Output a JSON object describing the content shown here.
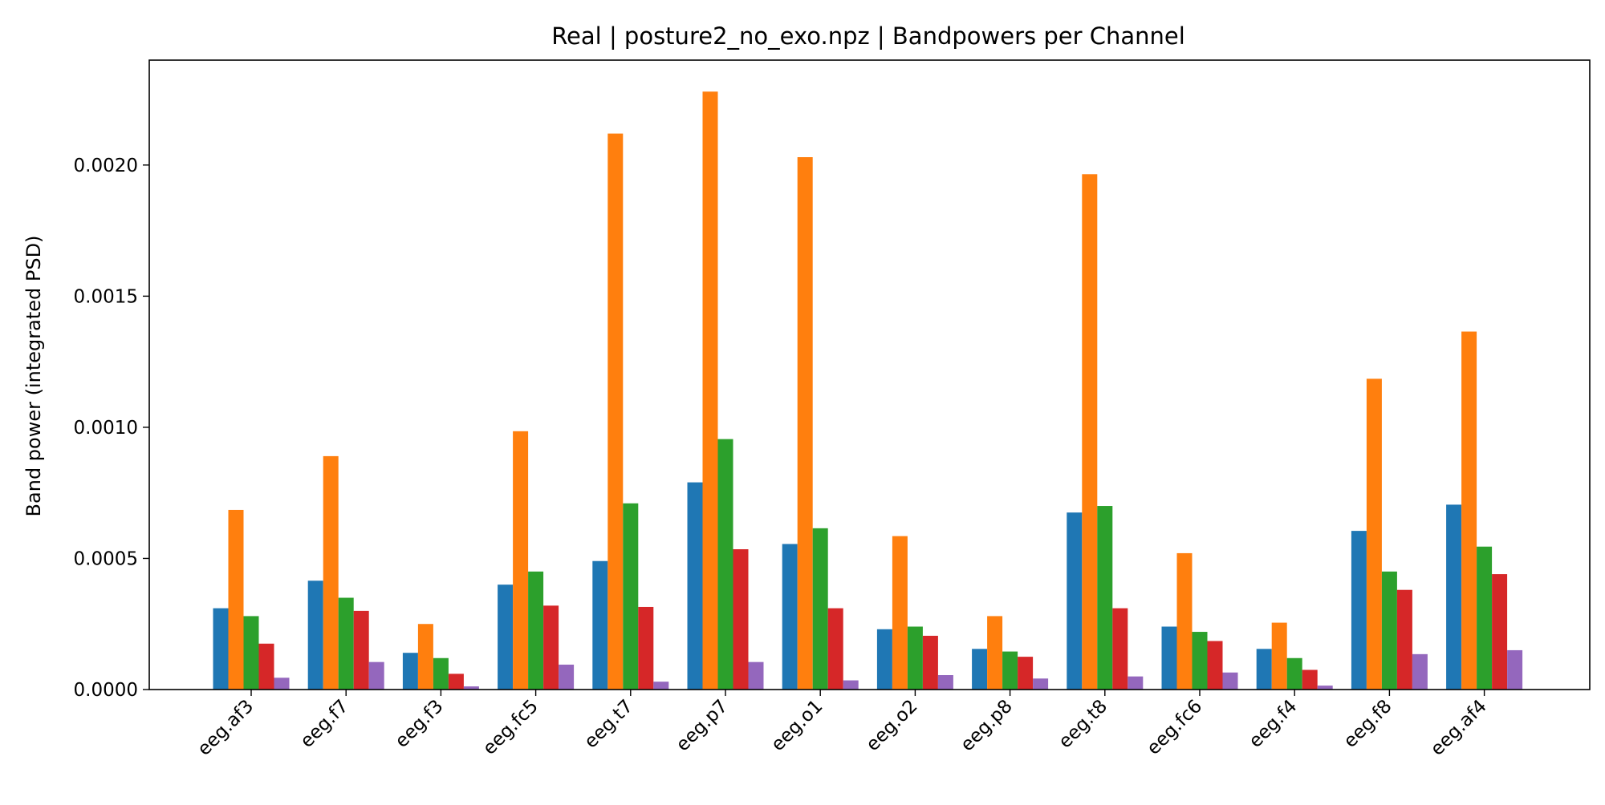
{
  "chart_data": {
    "type": "bar",
    "title": "Real | posture2_no_exo.npz | Bandpowers per Channel",
    "xlabel": "",
    "ylabel": "Band power (integrated PSD)",
    "ylim": [
      0,
      0.0024
    ],
    "yticks": [
      "0.0000",
      "0.0005",
      "0.0010",
      "0.0015",
      "0.0020"
    ],
    "grid": false,
    "legend": "none",
    "categories": [
      "eeg.af3",
      "eeg.f7",
      "eeg.f3",
      "eeg.fc5",
      "eeg.t7",
      "eeg.p7",
      "eeg.o1",
      "eeg.o2",
      "eeg.p8",
      "eeg.t8",
      "eeg.fc6",
      "eeg.f4",
      "eeg.f8",
      "eeg.af4"
    ],
    "series": [
      {
        "color": "#1f77b4",
        "values": [
          0.00031,
          0.000415,
          0.00014,
          0.0004,
          0.00049,
          0.00079,
          0.000555,
          0.00023,
          0.000155,
          0.000675,
          0.00024,
          0.000155,
          0.000605,
          0.000705
        ]
      },
      {
        "color": "#ff7f0e",
        "values": [
          0.000685,
          0.00089,
          0.00025,
          0.000985,
          0.00212,
          0.00228,
          0.00203,
          0.000585,
          0.00028,
          0.001965,
          0.00052,
          0.000255,
          0.001185,
          0.001365
        ]
      },
      {
        "color": "#2ca02c",
        "values": [
          0.00028,
          0.00035,
          0.00012,
          0.00045,
          0.00071,
          0.000955,
          0.000615,
          0.00024,
          0.000145,
          0.0007,
          0.00022,
          0.00012,
          0.00045,
          0.000545
        ]
      },
      {
        "color": "#d62728",
        "values": [
          0.000175,
          0.0003,
          6e-05,
          0.00032,
          0.000315,
          0.000535,
          0.00031,
          0.000205,
          0.000125,
          0.00031,
          0.000185,
          7.5e-05,
          0.00038,
          0.00044
        ]
      },
      {
        "color": "#9467bd",
        "values": [
          4.5e-05,
          0.000105,
          1.2e-05,
          9.5e-05,
          3e-05,
          0.000105,
          3.5e-05,
          5.5e-05,
          4.2e-05,
          5e-05,
          6.5e-05,
          1.5e-05,
          0.000135,
          0.00015
        ]
      }
    ]
  }
}
